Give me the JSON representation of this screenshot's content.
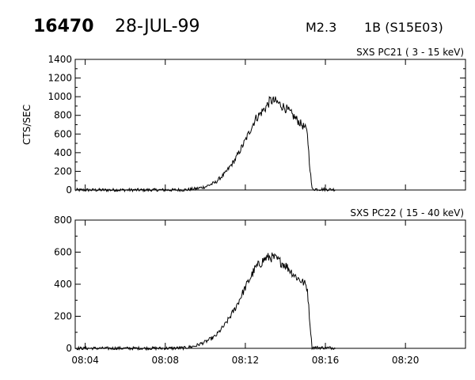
{
  "header": {
    "event_id": "16470",
    "date": "28-JUL-99",
    "flare_class": "M2.3",
    "optical_class": "1B (S15E03)"
  },
  "chart_data": [
    {
      "type": "line",
      "title": "SXS PC21  (  3 - 15 keV)",
      "ylabel": "CTS/SEC",
      "xlabel": "",
      "xlim": [
        "08:03:30",
        "08:23:00"
      ],
      "ylim": [
        0,
        1400
      ],
      "yticks": [
        0,
        200,
        400,
        600,
        800,
        1000,
        1200,
        1400
      ],
      "xticks": [],
      "series": [
        {
          "points": [
            [
              "08:03:30",
              0
            ],
            [
              "08:08:00",
              0
            ],
            [
              "08:09:00",
              2
            ],
            [
              "08:09:30",
              12
            ],
            [
              "08:10:00",
              35
            ],
            [
              "08:10:30",
              80
            ],
            [
              "08:11:00",
              180
            ],
            [
              "08:11:30",
              330
            ],
            [
              "08:12:00",
              530
            ],
            [
              "08:12:30",
              760
            ],
            [
              "08:13:00",
              880
            ],
            [
              "08:13:15",
              960
            ],
            [
              "08:13:30",
              950
            ],
            [
              "08:14:00",
              880
            ],
            [
              "08:14:30",
              770
            ],
            [
              "08:15:00",
              660
            ],
            [
              "08:15:06",
              610
            ],
            [
              "08:15:12",
              300
            ],
            [
              "08:15:20",
              10
            ],
            [
              "08:16:30",
              5
            ]
          ]
        }
      ],
      "color": "#000000"
    },
    {
      "type": "line",
      "title": "SXS PC22  ( 15 - 40 keV)",
      "ylabel": "",
      "xlabel": "",
      "xlim": [
        "08:03:30",
        "08:23:00"
      ],
      "ylim": [
        0,
        800
      ],
      "yticks": [
        0,
        200,
        400,
        600,
        800
      ],
      "xticks": [
        "08:04",
        "08:08",
        "08:12",
        "08:16",
        "08:20"
      ],
      "series": [
        {
          "points": [
            [
              "08:03:30",
              0
            ],
            [
              "08:08:00",
              0
            ],
            [
              "08:09:00",
              3
            ],
            [
              "08:09:30",
              15
            ],
            [
              "08:10:00",
              40
            ],
            [
              "08:10:30",
              75
            ],
            [
              "08:11:00",
              150
            ],
            [
              "08:11:30",
              250
            ],
            [
              "08:12:00",
              380
            ],
            [
              "08:12:30",
              500
            ],
            [
              "08:13:00",
              560
            ],
            [
              "08:13:15",
              570
            ],
            [
              "08:13:30",
              560
            ],
            [
              "08:14:00",
              520
            ],
            [
              "08:14:30",
              450
            ],
            [
              "08:15:00",
              400
            ],
            [
              "08:15:06",
              370
            ],
            [
              "08:15:12",
              200
            ],
            [
              "08:15:20",
              5
            ],
            [
              "08:16:30",
              3
            ]
          ]
        }
      ],
      "color": "#000000"
    }
  ]
}
